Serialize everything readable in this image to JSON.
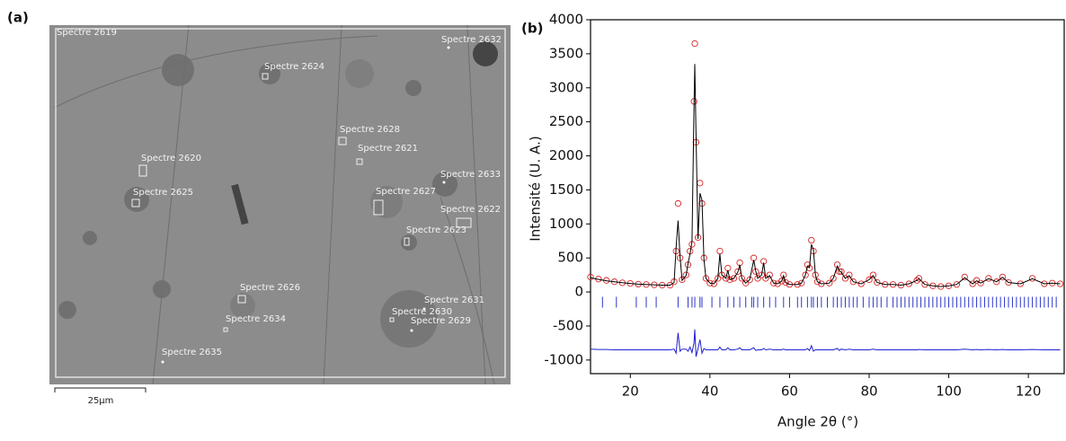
{
  "panel_labels": [
    "(a)",
    "(b)"
  ],
  "image": {
    "labels": [
      "Spectre 2619",
      "Spectre 2632",
      "Spectre 2624",
      "Spectre 2628",
      "Spectre 2621",
      "Spectre 2620",
      "Spectre 2633",
      "Spectre 2625",
      "Spectre 2627",
      "Spectre 2622",
      "Spectre 2623",
      "Spectre 2626",
      "Spectre 2631",
      "Spectre 2630",
      "Spectre 2629",
      "Spectre 2634",
      "Spectre 2635"
    ],
    "scale_bar": "25µm"
  },
  "chart_data": {
    "type": "line",
    "x_label": "Angle 2θ (°)",
    "y_label": "Intensité (U. A.)",
    "xlim": [
      10,
      129
    ],
    "ylim": [
      -1200,
      4000
    ],
    "xticks": [
      20,
      40,
      60,
      80,
      100,
      120
    ],
    "yticks": [
      -1000,
      -500,
      0,
      500,
      1000,
      1500,
      2000,
      2500,
      3000,
      3500,
      4000
    ],
    "grid": false,
    "x": [
      10,
      12,
      14,
      16,
      18,
      20,
      22,
      24,
      26,
      28,
      30,
      31,
      31.5,
      32,
      32.5,
      33,
      34,
      34.5,
      35,
      35.5,
      36,
      36.2,
      36.5,
      37,
      37.5,
      38,
      38.5,
      39,
      40,
      41,
      42,
      42.5,
      43,
      44,
      44.5,
      45,
      46,
      47,
      47.5,
      48,
      49,
      50,
      51,
      51.5,
      52,
      53,
      53.5,
      54,
      55,
      56,
      57,
      58,
      58.5,
      59,
      60,
      62,
      63,
      64,
      64.5,
      65,
      65.5,
      66,
      66.5,
      67,
      68,
      70,
      71,
      72,
      72.5,
      73,
      74,
      75,
      76,
      78,
      80,
      81,
      82,
      84,
      86,
      88,
      90,
      92,
      92.5,
      94,
      96,
      98,
      100,
      102,
      104,
      106,
      107,
      108,
      110,
      112,
      113.5,
      115,
      118,
      121,
      124,
      126,
      128
    ],
    "series": [
      {
        "type": "scatter",
        "color": "#d62728",
        "values": [
          220,
          190,
          170,
          150,
          135,
          125,
          115,
          110,
          105,
          100,
          100,
          150,
          600,
          1300,
          500,
          180,
          250,
          400,
          600,
          700,
          2800,
          3650,
          2200,
          800,
          1600,
          1300,
          500,
          200,
          130,
          120,
          200,
          600,
          250,
          200,
          350,
          180,
          200,
          300,
          430,
          200,
          130,
          180,
          500,
          300,
          200,
          250,
          450,
          200,
          250,
          130,
          120,
          160,
          250,
          140,
          110,
          110,
          130,
          250,
          400,
          350,
          760,
          600,
          250,
          150,
          120,
          130,
          200,
          400,
          300,
          300,
          200,
          250,
          150,
          120,
          180,
          250,
          140,
          110,
          110,
          100,
          120,
          170,
          200,
          110,
          90,
          80,
          90,
          110,
          220,
          120,
          170,
          130,
          200,
          150,
          220,
          140,
          120,
          200,
          120,
          130,
          120
        ]
      },
      {
        "type": "line",
        "color": "#000000",
        "values": [
          210,
          185,
          165,
          150,
          135,
          125,
          115,
          110,
          105,
          100,
          100,
          140,
          650,
          1050,
          520,
          170,
          240,
          420,
          560,
          740,
          2700,
          3350,
          2300,
          780,
          1450,
          1350,
          480,
          200,
          130,
          120,
          200,
          560,
          250,
          200,
          320,
          180,
          200,
          290,
          400,
          200,
          130,
          180,
          470,
          310,
          200,
          250,
          430,
          200,
          240,
          130,
          120,
          160,
          240,
          140,
          110,
          110,
          130,
          250,
          380,
          360,
          700,
          620,
          250,
          150,
          120,
          130,
          200,
          380,
          310,
          290,
          200,
          240,
          150,
          120,
          180,
          240,
          140,
          110,
          110,
          100,
          120,
          170,
          195,
          110,
          90,
          80,
          90,
          110,
          210,
          120,
          165,
          130,
          195,
          150,
          215,
          140,
          120,
          195,
          120,
          130,
          120
        ]
      },
      {
        "type": "line",
        "color": "#1f1fd0",
        "values": [
          -840,
          -845,
          -845,
          -850,
          -850,
          -850,
          -850,
          -850,
          -850,
          -850,
          -850,
          -840,
          -900,
          -600,
          -870,
          -840,
          -840,
          -870,
          -810,
          -890,
          -750,
          -550,
          -950,
          -830,
          -700,
          -900,
          -830,
          -850,
          -850,
          -850,
          -850,
          -810,
          -850,
          -850,
          -820,
          -850,
          -850,
          -840,
          -820,
          -850,
          -850,
          -850,
          -820,
          -860,
          -850,
          -850,
          -830,
          -850,
          -840,
          -850,
          -850,
          -850,
          -840,
          -850,
          -850,
          -850,
          -850,
          -850,
          -830,
          -860,
          -790,
          -870,
          -850,
          -850,
          -850,
          -850,
          -850,
          -830,
          -860,
          -840,
          -850,
          -840,
          -850,
          -850,
          -850,
          -840,
          -850,
          -850,
          -850,
          -850,
          -850,
          -850,
          -845,
          -850,
          -850,
          -850,
          -850,
          -850,
          -840,
          -850,
          -845,
          -850,
          -845,
          -850,
          -845,
          -850,
          -850,
          -845,
          -850,
          -850,
          -850
        ]
      },
      {
        "type": "ticks",
        "color": "#2a35c8",
        "y": -150,
        "x": [
          13,
          16.5,
          21.5,
          24,
          26.5,
          32,
          34.5,
          35.5,
          36.2,
          37.5,
          38,
          40.5,
          42.5,
          44.5,
          46,
          47.5,
          49,
          50.5,
          51,
          52,
          53.5,
          55,
          56.5,
          58.5,
          60,
          62,
          63,
          64.5,
          65.5,
          66,
          67,
          68,
          69.5,
          71,
          72,
          73,
          74,
          75,
          76,
          77,
          78.5,
          80,
          81,
          82,
          83,
          84.5,
          86,
          87,
          88,
          89,
          90,
          91,
          92,
          93,
          94,
          95,
          96,
          97,
          98,
          99,
          100,
          101,
          102,
          103,
          104,
          105,
          106,
          107,
          108,
          109,
          110,
          111,
          112,
          113,
          114,
          115,
          116,
          117,
          118,
          119,
          120,
          121,
          122,
          123,
          124,
          125,
          126,
          127
        ]
      }
    ]
  }
}
